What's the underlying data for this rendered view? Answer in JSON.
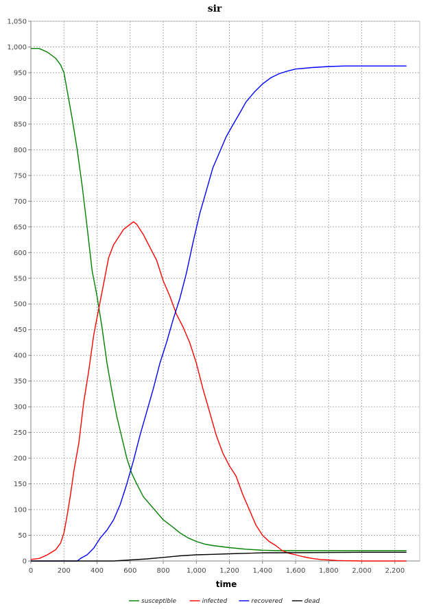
{
  "chart_data": {
    "type": "line",
    "title": "sir",
    "xlabel": "time",
    "ylabel": "",
    "xlim": [
      0,
      2350
    ],
    "ylim": [
      0,
      1050
    ],
    "xticks": [
      0,
      200,
      400,
      600,
      800,
      1000,
      1200,
      1400,
      1600,
      1800,
      2000,
      2200
    ],
    "yticks": [
      0,
      50,
      100,
      150,
      200,
      250,
      300,
      350,
      400,
      450,
      500,
      550,
      600,
      650,
      700,
      750,
      800,
      850,
      900,
      950,
      1000,
      1050
    ],
    "xtick_labels": [
      "0",
      "200",
      "400",
      "600",
      "800",
      "1,000",
      "1,200",
      "1,400",
      "1,600",
      "1,800",
      "2,000",
      "2,200"
    ],
    "ytick_labels": [
      "0",
      "50",
      "100",
      "150",
      "200",
      "250",
      "300",
      "350",
      "400",
      "450",
      "500",
      "550",
      "600",
      "650",
      "700",
      "750",
      "800",
      "850",
      "900",
      "950",
      "1,000",
      "1,050"
    ],
    "grid": true,
    "legend_position": "bottom",
    "series": [
      {
        "name": "susceptible",
        "color": "#008000",
        "points": [
          [
            0,
            997
          ],
          [
            50,
            997
          ],
          [
            100,
            990
          ],
          [
            150,
            978
          ],
          [
            180,
            965
          ],
          [
            200,
            950
          ],
          [
            225,
            905
          ],
          [
            250,
            860
          ],
          [
            280,
            800
          ],
          [
            310,
            730
          ],
          [
            340,
            650
          ],
          [
            370,
            565
          ],
          [
            400,
            515
          ],
          [
            430,
            455
          ],
          [
            460,
            385
          ],
          [
            490,
            330
          ],
          [
            520,
            280
          ],
          [
            550,
            240
          ],
          [
            580,
            200
          ],
          [
            610,
            170
          ],
          [
            640,
            150
          ],
          [
            680,
            125
          ],
          [
            720,
            110
          ],
          [
            760,
            95
          ],
          [
            800,
            80
          ],
          [
            850,
            68
          ],
          [
            900,
            55
          ],
          [
            950,
            45
          ],
          [
            1000,
            38
          ],
          [
            1050,
            33
          ],
          [
            1100,
            30
          ],
          [
            1150,
            28
          ],
          [
            1200,
            26
          ],
          [
            1300,
            23
          ],
          [
            1400,
            21
          ],
          [
            1500,
            20
          ],
          [
            1700,
            20
          ],
          [
            2000,
            20
          ],
          [
            2270,
            20
          ]
        ]
      },
      {
        "name": "infected",
        "color": "#ff0000",
        "points": [
          [
            0,
            3
          ],
          [
            50,
            5
          ],
          [
            100,
            12
          ],
          [
            150,
            22
          ],
          [
            180,
            35
          ],
          [
            200,
            55
          ],
          [
            220,
            90
          ],
          [
            240,
            130
          ],
          [
            260,
            175
          ],
          [
            290,
            230
          ],
          [
            320,
            310
          ],
          [
            350,
            370
          ],
          [
            380,
            440
          ],
          [
            410,
            490
          ],
          [
            440,
            540
          ],
          [
            470,
            590
          ],
          [
            500,
            615
          ],
          [
            530,
            630
          ],
          [
            560,
            645
          ],
          [
            600,
            655
          ],
          [
            620,
            660
          ],
          [
            640,
            655
          ],
          [
            660,
            645
          ],
          [
            680,
            635
          ],
          [
            720,
            610
          ],
          [
            760,
            585
          ],
          [
            800,
            545
          ],
          [
            840,
            515
          ],
          [
            880,
            480
          ],
          [
            920,
            455
          ],
          [
            960,
            425
          ],
          [
            1000,
            385
          ],
          [
            1040,
            335
          ],
          [
            1080,
            290
          ],
          [
            1120,
            245
          ],
          [
            1160,
            210
          ],
          [
            1200,
            185
          ],
          [
            1240,
            165
          ],
          [
            1280,
            130
          ],
          [
            1320,
            100
          ],
          [
            1360,
            70
          ],
          [
            1400,
            50
          ],
          [
            1440,
            38
          ],
          [
            1480,
            30
          ],
          [
            1520,
            20
          ],
          [
            1560,
            15
          ],
          [
            1600,
            12
          ],
          [
            1650,
            8
          ],
          [
            1700,
            5
          ],
          [
            1750,
            3
          ],
          [
            1800,
            2
          ],
          [
            1850,
            1
          ],
          [
            2000,
            0
          ],
          [
            2270,
            0
          ]
        ]
      },
      {
        "name": "recovered",
        "color": "#0000ff",
        "points": [
          [
            0,
            0
          ],
          [
            200,
            0
          ],
          [
            280,
            0
          ],
          [
            300,
            5
          ],
          [
            340,
            12
          ],
          [
            380,
            25
          ],
          [
            420,
            45
          ],
          [
            460,
            60
          ],
          [
            500,
            80
          ],
          [
            540,
            110
          ],
          [
            580,
            150
          ],
          [
            620,
            195
          ],
          [
            660,
            245
          ],
          [
            700,
            290
          ],
          [
            740,
            335
          ],
          [
            780,
            385
          ],
          [
            820,
            425
          ],
          [
            860,
            470
          ],
          [
            900,
            510
          ],
          [
            940,
            560
          ],
          [
            980,
            620
          ],
          [
            1020,
            675
          ],
          [
            1060,
            720
          ],
          [
            1100,
            765
          ],
          [
            1140,
            795
          ],
          [
            1180,
            825
          ],
          [
            1220,
            848
          ],
          [
            1260,
            870
          ],
          [
            1300,
            893
          ],
          [
            1350,
            912
          ],
          [
            1400,
            928
          ],
          [
            1450,
            940
          ],
          [
            1500,
            948
          ],
          [
            1550,
            953
          ],
          [
            1600,
            957
          ],
          [
            1700,
            960
          ],
          [
            1800,
            962
          ],
          [
            1900,
            963
          ],
          [
            2000,
            963
          ],
          [
            2270,
            963
          ]
        ]
      },
      {
        "name": "dead",
        "color": "#000000",
        "points": [
          [
            0,
            0
          ],
          [
            500,
            0
          ],
          [
            600,
            2
          ],
          [
            700,
            4
          ],
          [
            800,
            7
          ],
          [
            900,
            10
          ],
          [
            1000,
            12
          ],
          [
            1100,
            13
          ],
          [
            1200,
            14
          ],
          [
            1300,
            15
          ],
          [
            1400,
            16
          ],
          [
            1500,
            16
          ],
          [
            2000,
            17
          ],
          [
            2270,
            17
          ]
        ]
      }
    ]
  }
}
